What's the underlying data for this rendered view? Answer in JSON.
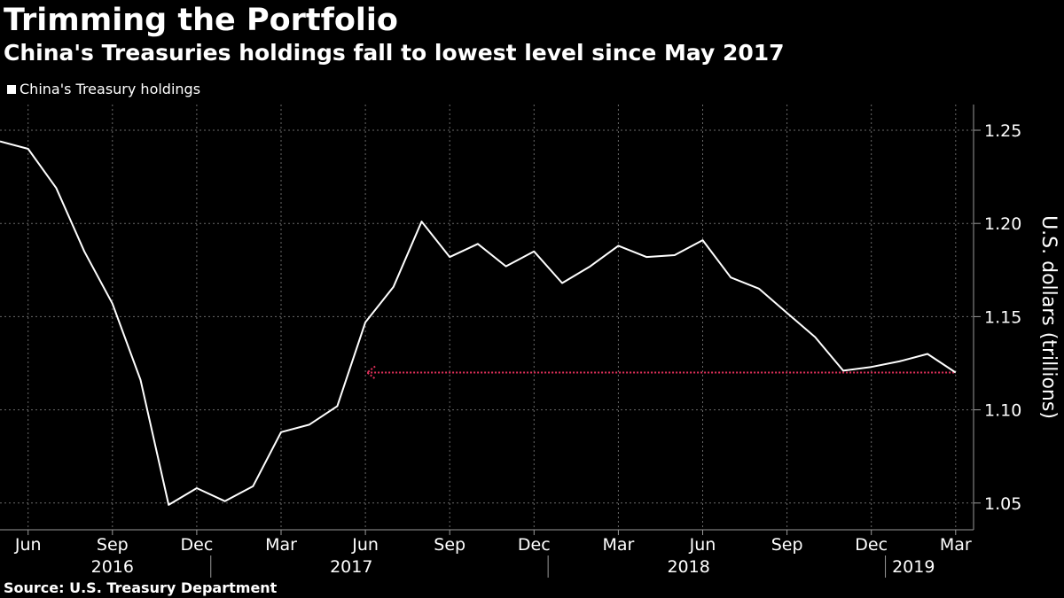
{
  "header": {
    "title": "Trimming the Portfolio",
    "subtitle": "China's Treasuries holdings fall to lowest level since May 2017"
  },
  "legend": {
    "label": "China's Treasury holdings"
  },
  "footer": {
    "source": "Source: U.S. Treasury Department"
  },
  "colors": {
    "line": "#ffffff",
    "reference": "#e0305a",
    "grid": "#6a6a6a",
    "axis": "#9a9a9a"
  },
  "chart_data": {
    "type": "line",
    "title": "Trimming the Portfolio",
    "ylabel": "U.S. dollars (trillions)",
    "ylim": [
      1.03,
      1.26
    ],
    "yticks": [
      "1.05",
      "1.10",
      "1.15",
      "1.20",
      "1.25"
    ],
    "xticks": [
      {
        "label": "Jun",
        "index": 1
      },
      {
        "label": "Sep",
        "index": 4
      },
      {
        "label": "Dec",
        "index": 7
      },
      {
        "label": "Mar",
        "index": 10
      },
      {
        "label": "Jun",
        "index": 13
      },
      {
        "label": "Sep",
        "index": 16
      },
      {
        "label": "Dec",
        "index": 19
      },
      {
        "label": "Mar",
        "index": 22
      },
      {
        "label": "Jun",
        "index": 25
      },
      {
        "label": "Sep",
        "index": 28
      },
      {
        "label": "Dec",
        "index": 31
      },
      {
        "label": "Mar",
        "index": 34
      }
    ],
    "years": [
      {
        "label": "2016",
        "center_index": 4
      },
      {
        "label": "2017",
        "center_index": 12.5
      },
      {
        "label": "2018",
        "center_index": 24.5
      },
      {
        "label": "2019",
        "center_index": 32.5
      }
    ],
    "year_separators": [
      7.5,
      19.5,
      31.5
    ],
    "x": [
      "2016-05",
      "2016-06",
      "2016-07",
      "2016-08",
      "2016-09",
      "2016-10",
      "2016-11",
      "2016-12",
      "2017-01",
      "2017-02",
      "2017-03",
      "2017-04",
      "2017-05",
      "2017-06",
      "2017-07",
      "2017-08",
      "2017-09",
      "2017-10",
      "2017-11",
      "2017-12",
      "2018-01",
      "2018-02",
      "2018-03",
      "2018-04",
      "2018-05",
      "2018-06",
      "2018-07",
      "2018-08",
      "2018-09",
      "2018-10",
      "2018-11",
      "2018-12",
      "2019-01",
      "2019-02",
      "2019-03"
    ],
    "series": [
      {
        "name": "China's Treasury holdings",
        "values": [
          1.244,
          1.24,
          1.219,
          1.185,
          1.157,
          1.116,
          1.049,
          1.058,
          1.051,
          1.059,
          1.088,
          1.092,
          1.102,
          1.147,
          1.166,
          1.201,
          1.182,
          1.189,
          1.177,
          1.185,
          1.168,
          1.177,
          1.188,
          1.182,
          1.183,
          1.191,
          1.171,
          1.165,
          1.152,
          1.139,
          1.121,
          1.123,
          1.126,
          1.13,
          1.12
        ]
      }
    ],
    "reference_line": {
      "value": 1.12,
      "from_index": 13,
      "to_index": 34
    }
  }
}
